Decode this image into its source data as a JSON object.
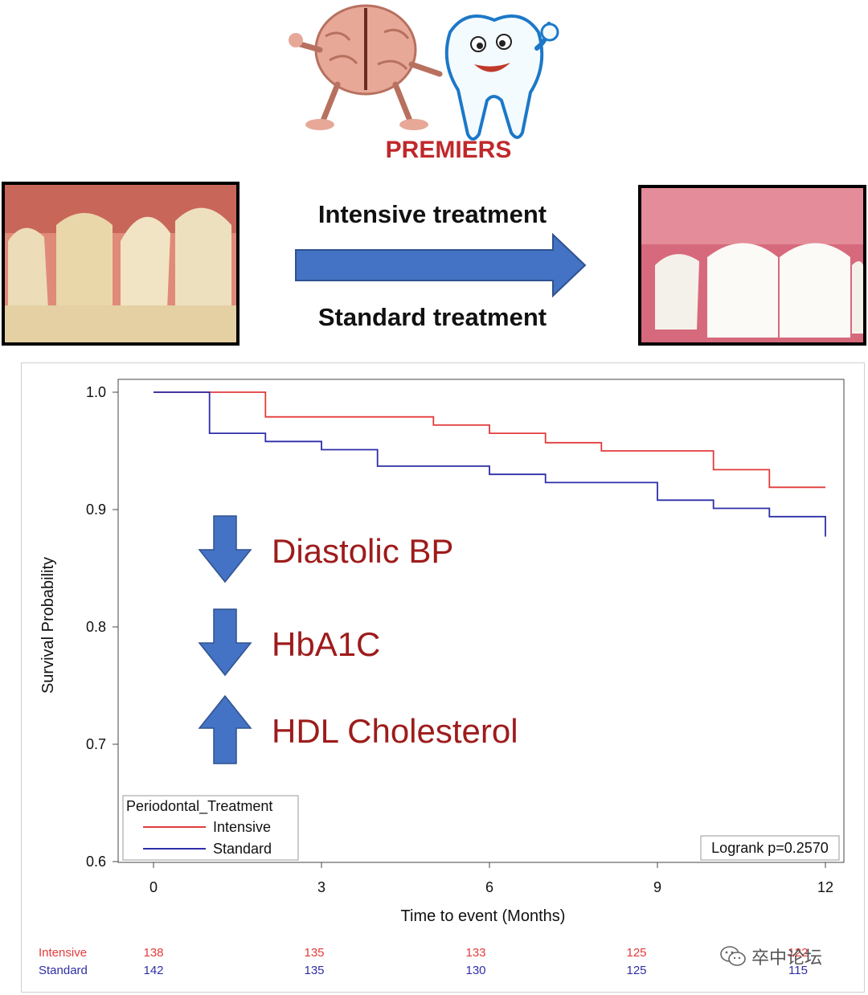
{
  "banner": {
    "logo_text": "PREMIERS",
    "arrow_top_label": "Intensive treatment",
    "arrow_bottom_label": "Standard treatment"
  },
  "chart_data": {
    "type": "line",
    "subtype": "kaplan-meier step",
    "ylabel": "Survival Probability",
    "xlabel": "Time to event (Months)",
    "ylim": [
      0.6,
      1.0
    ],
    "xlim": [
      0,
      12
    ],
    "yticks": [
      "0.6",
      "0.7",
      "0.8",
      "0.9",
      "1.0"
    ],
    "xticks": [
      "0",
      "3",
      "6",
      "9",
      "12"
    ],
    "series": [
      {
        "name": "Intensive",
        "color": "#e23b3b",
        "points": [
          [
            0,
            1.0
          ],
          [
            2,
            1.0
          ],
          [
            2,
            0.979
          ],
          [
            5,
            0.979
          ],
          [
            5,
            0.972
          ],
          [
            6,
            0.972
          ],
          [
            6,
            0.965
          ],
          [
            7,
            0.965
          ],
          [
            7,
            0.957
          ],
          [
            8,
            0.957
          ],
          [
            8,
            0.95
          ],
          [
            10,
            0.95
          ],
          [
            10,
            0.934
          ],
          [
            11,
            0.934
          ],
          [
            11,
            0.919
          ],
          [
            12,
            0.919
          ]
        ]
      },
      {
        "name": "Standard",
        "color": "#2e2ea8",
        "points": [
          [
            0,
            1.0
          ],
          [
            1,
            1.0
          ],
          [
            1,
            0.965
          ],
          [
            2,
            0.965
          ],
          [
            2,
            0.958
          ],
          [
            3,
            0.958
          ],
          [
            3,
            0.951
          ],
          [
            4,
            0.951
          ],
          [
            4,
            0.937
          ],
          [
            6,
            0.937
          ],
          [
            6,
            0.93
          ],
          [
            7,
            0.93
          ],
          [
            7,
            0.923
          ],
          [
            9,
            0.923
          ],
          [
            9,
            0.908
          ],
          [
            10,
            0.908
          ],
          [
            10,
            0.901
          ],
          [
            11,
            0.901
          ],
          [
            11,
            0.894
          ],
          [
            12,
            0.894
          ],
          [
            12,
            0.877
          ]
        ]
      }
    ],
    "legend": {
      "title": "Periodontal_Treatment",
      "entries": [
        "Intensive",
        "Standard"
      ],
      "placement": "bottom-left"
    },
    "annotation": "Logrank p=0.2570",
    "overlay": [
      {
        "direction": "down",
        "label": "Diastolic BP"
      },
      {
        "direction": "down",
        "label": "HbA1C"
      },
      {
        "direction": "up",
        "label": "HDL Cholesterol"
      }
    ],
    "risk_table": {
      "rows": [
        {
          "label": "Intensive",
          "color": "#e23b3b",
          "values": [
            "138",
            "135",
            "133",
            "125",
            "122"
          ]
        },
        {
          "label": "Standard",
          "color": "#2e2ea8",
          "values": [
            "142",
            "135",
            "130",
            "125",
            "115"
          ]
        }
      ]
    }
  },
  "watermark": {
    "text": "卒中论坛",
    "icon": "wechat-icon"
  }
}
